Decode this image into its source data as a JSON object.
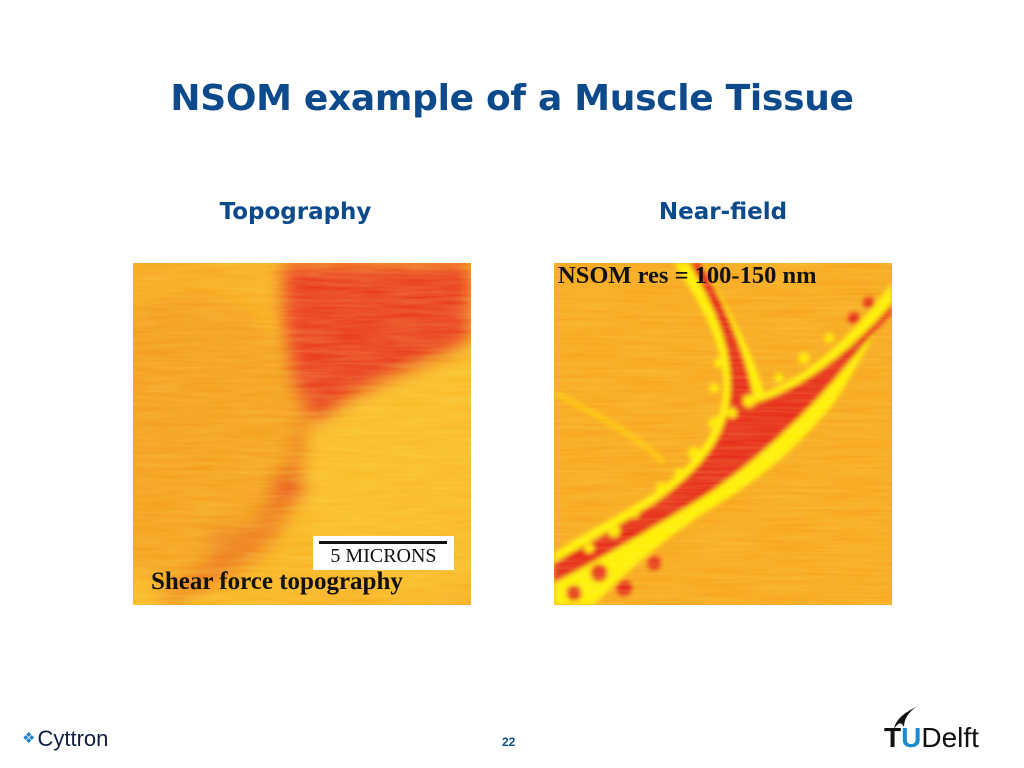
{
  "slide": {
    "title": "NSOM example of a Muscle Tissue",
    "page_number": "22"
  },
  "panels": {
    "left": {
      "heading": "Topography",
      "scale_label": "5 MICRONS",
      "caption": "Shear force topography"
    },
    "right": {
      "heading": "Near-field",
      "caption": "NSOM res = 100-150 nm"
    }
  },
  "footer": {
    "brand": "Cyttron",
    "bullet_icon": "diamond-bullet-icon",
    "logo_text_t": "T",
    "logo_text_u": "U",
    "logo_text_rest": "Delft"
  },
  "colors": {
    "title": "#0d4a8c",
    "heatmap_low": "#e30e16",
    "heatmap_mid": "#f89a1e",
    "heatmap_high": "#fff200"
  }
}
